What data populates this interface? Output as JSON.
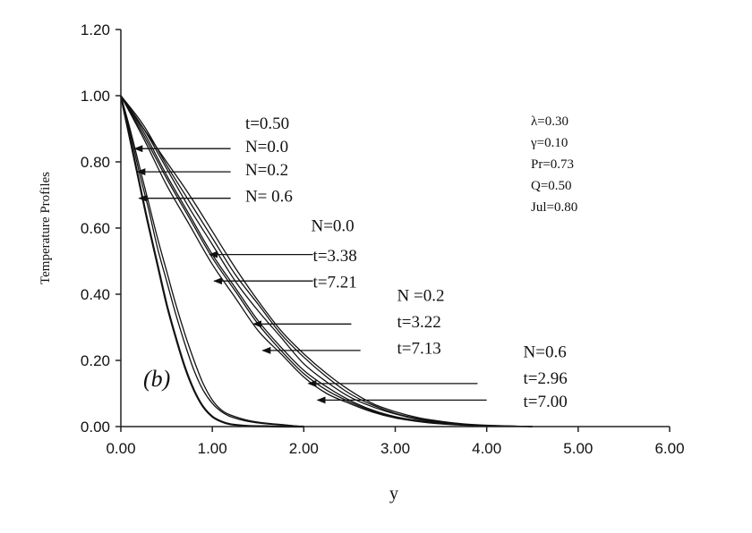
{
  "chart_data": {
    "type": "line",
    "xlabel": "y",
    "ylabel": "Temperature Profiles",
    "panel_label": "(b)",
    "xlim": [
      0,
      6
    ],
    "ylim": [
      0,
      1.2
    ],
    "x_ticks": [
      "0.00",
      "1.00",
      "2.00",
      "3.00",
      "4.00",
      "5.00",
      "6.00"
    ],
    "y_ticks": [
      "0.00",
      "0.20",
      "0.40",
      "0.60",
      "0.80",
      "1.00",
      "1.20"
    ],
    "grid": false,
    "parameters": [
      "λ=0.30",
      "γ=0.10",
      "Pr=0.73",
      "Q=0.50",
      "Jul=0.80"
    ],
    "series": [
      {
        "x": [
          0,
          0.1,
          0.2,
          0.3,
          0.4,
          0.5,
          0.6,
          0.7,
          0.8,
          0.9,
          1.0,
          1.1,
          1.2,
          1.4,
          1.6,
          1.8,
          2.0
        ],
        "values": [
          1.0,
          0.87,
          0.74,
          0.61,
          0.49,
          0.37,
          0.27,
          0.18,
          0.11,
          0.06,
          0.03,
          0.015,
          0.007,
          0.002,
          0.001,
          0.0,
          0.0
        ]
      },
      {
        "x": [
          0,
          0.1,
          0.2,
          0.3,
          0.4,
          0.5,
          0.6,
          0.7,
          0.8,
          0.9,
          1.0,
          1.1,
          1.2,
          1.4,
          1.6,
          1.8,
          2.0
        ],
        "values": [
          1.0,
          0.89,
          0.77,
          0.66,
          0.54,
          0.44,
          0.34,
          0.25,
          0.17,
          0.11,
          0.07,
          0.045,
          0.03,
          0.015,
          0.008,
          0.004,
          0.0
        ]
      },
      {
        "x": [
          0,
          0.1,
          0.2,
          0.3,
          0.4,
          0.5,
          0.6,
          0.7,
          0.8,
          0.9,
          1.0,
          1.1,
          1.2,
          1.4,
          1.6,
          1.8,
          2.0
        ],
        "values": [
          1.0,
          0.9,
          0.79,
          0.68,
          0.57,
          0.47,
          0.37,
          0.28,
          0.2,
          0.13,
          0.08,
          0.05,
          0.035,
          0.018,
          0.01,
          0.005,
          0.0
        ]
      },
      {
        "x": [
          0,
          0.25,
          0.5,
          0.75,
          1.0,
          1.25,
          1.5,
          1.75,
          2.0,
          2.25,
          2.5,
          2.75,
          3.0,
          3.25,
          3.5,
          3.75,
          4.0,
          4.5
        ],
        "values": [
          1.0,
          0.89,
          0.76,
          0.64,
          0.52,
          0.42,
          0.32,
          0.24,
          0.17,
          0.12,
          0.08,
          0.05,
          0.03,
          0.018,
          0.01,
          0.005,
          0.002,
          0.0
        ]
      },
      {
        "x": [
          0,
          0.25,
          0.5,
          0.75,
          1.0,
          1.25,
          1.5,
          1.75,
          2.0,
          2.25,
          2.5,
          2.75,
          3.0,
          3.25,
          3.5,
          3.75,
          4.0,
          4.5
        ],
        "values": [
          1.0,
          0.9,
          0.78,
          0.66,
          0.55,
          0.44,
          0.35,
          0.27,
          0.19,
          0.135,
          0.09,
          0.06,
          0.038,
          0.022,
          0.012,
          0.006,
          0.003,
          0.0
        ]
      },
      {
        "x": [
          0,
          0.25,
          0.5,
          0.75,
          1.0,
          1.25,
          1.5,
          1.75,
          2.0,
          2.25,
          2.5,
          2.75,
          3.0,
          3.25,
          3.5,
          3.75,
          4.0,
          4.5
        ],
        "values": [
          1.0,
          0.88,
          0.75,
          0.63,
          0.51,
          0.41,
          0.31,
          0.23,
          0.16,
          0.11,
          0.075,
          0.047,
          0.028,
          0.016,
          0.009,
          0.005,
          0.002,
          0.0
        ]
      },
      {
        "x": [
          0,
          0.25,
          0.5,
          0.75,
          1.0,
          1.25,
          1.5,
          1.75,
          2.0,
          2.25,
          2.5,
          2.75,
          3.0,
          3.25,
          3.5,
          3.75,
          4.0,
          4.5
        ],
        "values": [
          1.0,
          0.91,
          0.79,
          0.68,
          0.57,
          0.46,
          0.37,
          0.28,
          0.21,
          0.15,
          0.1,
          0.065,
          0.04,
          0.024,
          0.014,
          0.007,
          0.003,
          0.0
        ]
      },
      {
        "x": [
          0,
          0.25,
          0.5,
          0.75,
          1.0,
          1.25,
          1.5,
          1.75,
          2.0,
          2.25,
          2.5,
          2.75,
          3.0,
          3.25,
          3.5,
          3.75,
          4.0,
          4.5
        ],
        "values": [
          1.0,
          0.87,
          0.73,
          0.61,
          0.49,
          0.39,
          0.29,
          0.22,
          0.15,
          0.1,
          0.07,
          0.044,
          0.026,
          0.015,
          0.008,
          0.004,
          0.002,
          0.0
        ]
      },
      {
        "x": [
          0,
          0.25,
          0.5,
          0.75,
          1.0,
          1.25,
          1.5,
          1.75,
          2.0,
          2.25,
          2.5,
          2.75,
          3.0,
          3.25,
          3.5,
          3.75,
          4.0,
          4.5
        ],
        "values": [
          1.0,
          0.9,
          0.8,
          0.7,
          0.59,
          0.48,
          0.38,
          0.29,
          0.22,
          0.16,
          0.11,
          0.07,
          0.045,
          0.027,
          0.016,
          0.008,
          0.004,
          0.0
        ]
      }
    ],
    "annotations": [
      {
        "text": "t=0.50",
        "x": 1.36,
        "y": 0.9
      },
      {
        "text": "N=0.0",
        "x": 1.36,
        "y": 0.83
      },
      {
        "text": "N=0.2",
        "x": 1.36,
        "y": 0.76
      },
      {
        "text": "N= 0.6",
        "x": 1.36,
        "y": 0.68
      },
      {
        "text": "N=0.0",
        "x": 2.08,
        "y": 0.59
      },
      {
        "text": "t=3.38",
        "x": 2.1,
        "y": 0.5
      },
      {
        "text": "t=7.21",
        "x": 2.1,
        "y": 0.42
      },
      {
        "text": "N =0.2",
        "x": 3.02,
        "y": 0.38
      },
      {
        "text": "t=3.22",
        "x": 3.02,
        "y": 0.3
      },
      {
        "text": "t=7.13",
        "x": 3.02,
        "y": 0.22
      },
      {
        "text": "N=0.6",
        "x": 4.4,
        "y": 0.21
      },
      {
        "text": "t=2.96",
        "x": 4.4,
        "y": 0.13
      },
      {
        "text": "t=7.00",
        "x": 4.4,
        "y": 0.06
      }
    ],
    "arrows": [
      {
        "from": [
          1.2,
          0.84
        ],
        "to": [
          0.15,
          0.84
        ]
      },
      {
        "from": [
          1.2,
          0.77
        ],
        "to": [
          0.18,
          0.77
        ]
      },
      {
        "from": [
          1.2,
          0.69
        ],
        "to": [
          0.2,
          0.69
        ]
      },
      {
        "from": [
          2.1,
          0.52
        ],
        "to": [
          0.97,
          0.52
        ]
      },
      {
        "from": [
          2.1,
          0.44
        ],
        "to": [
          1.02,
          0.44
        ]
      },
      {
        "from": [
          2.52,
          0.31
        ],
        "to": [
          1.45,
          0.31
        ]
      },
      {
        "from": [
          2.62,
          0.23
        ],
        "to": [
          1.55,
          0.23
        ]
      },
      {
        "from": [
          3.9,
          0.13
        ],
        "to": [
          2.05,
          0.13
        ]
      },
      {
        "from": [
          4.0,
          0.08
        ],
        "to": [
          2.15,
          0.08
        ]
      }
    ]
  }
}
